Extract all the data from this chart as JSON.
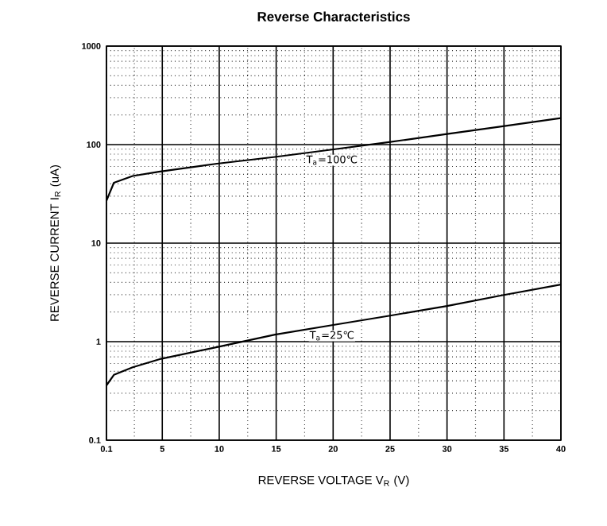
{
  "chart_data": {
    "type": "line",
    "title": "Reverse    Characteristics",
    "xlabel": "REVERSE VOLTAGE   V$_{R}$   (V)",
    "ylabel": "REVERSE CURRENT   I$_{R}$   (uA)",
    "log": "y",
    "grid": true,
    "xlim": [
      0.1,
      40
    ],
    "ylim": [
      0.1,
      1000
    ],
    "xticks": [
      0.1,
      5,
      10,
      15,
      20,
      25,
      30,
      35,
      40
    ],
    "yticks": [
      0.1,
      1,
      10,
      100,
      1000
    ],
    "series": [
      {
        "color": "#000000",
        "x": [
          0.1,
          0.75,
          2.4,
          4.7,
          9.8,
          14.9,
          19.9,
          24.9,
          30,
          34.8,
          40
        ],
        "values": [
          27,
          41,
          48,
          53,
          64,
          75,
          89,
          106,
          128,
          153,
          186
        ]
      },
      {
        "color": "#000000",
        "x": [
          0.1,
          0.75,
          2.4,
          4.9,
          9.8,
          14.9,
          19.9,
          24.9,
          30,
          34.8,
          40
        ],
        "values": [
          0.36,
          0.46,
          0.55,
          0.67,
          0.88,
          1.18,
          1.47,
          1.83,
          2.3,
          2.95,
          3.8
        ]
      }
    ],
    "annotations": [
      "T$_{a}$=100℃",
      "T$_{a}$=25℃"
    ]
  }
}
